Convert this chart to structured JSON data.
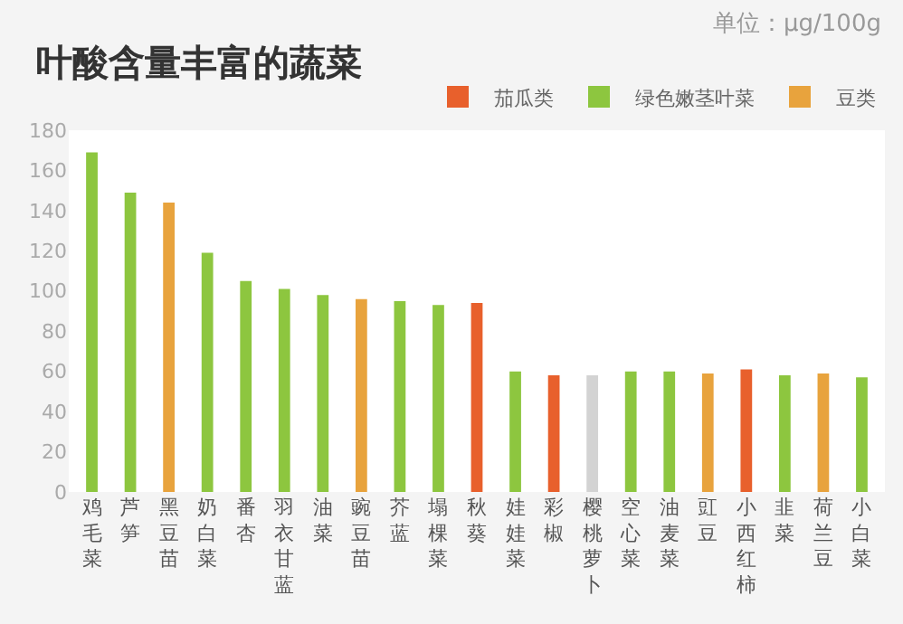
{
  "chart_data": {
    "type": "bar",
    "title": "叶酸含量丰富的蔬菜",
    "annotations": [
      "单位：μg/100g"
    ],
    "categories": [
      "鸡毛菜",
      "芦笋",
      "黑豆苗",
      "奶白菜",
      "番杏",
      "羽衣甘蓝",
      "油菜",
      "豌豆苗",
      "芥蓝",
      "塌棵菜",
      "秋葵",
      "娃娃菜",
      "彩椒",
      "樱桃萝卜",
      "空心菜",
      "油麦菜",
      "豇豆",
      "小西红柿",
      "韭菜",
      "荷兰豆",
      "小白菜"
    ],
    "series": [
      {
        "name": "茄瓜类",
        "color": "#e8602c",
        "values": [
          null,
          null,
          null,
          null,
          null,
          null,
          null,
          null,
          null,
          null,
          94,
          null,
          58,
          null,
          null,
          null,
          null,
          61,
          null,
          null,
          null
        ]
      },
      {
        "name": "绿色嫩茎叶菜",
        "color": "#8dc63f",
        "values": [
          169,
          149,
          null,
          119,
          105,
          101,
          98,
          null,
          95,
          93,
          null,
          60,
          null,
          null,
          60,
          60,
          null,
          null,
          58,
          null,
          57
        ]
      },
      {
        "name": "豆类",
        "color": "#e8a33d",
        "values": [
          null,
          null,
          144,
          null,
          null,
          null,
          null,
          96,
          null,
          null,
          null,
          null,
          null,
          null,
          null,
          null,
          59,
          null,
          null,
          59,
          null
        ]
      },
      {
        "color": "#d3d3d3",
        "values": [
          null,
          null,
          null,
          null,
          null,
          null,
          null,
          null,
          null,
          null,
          null,
          null,
          null,
          58,
          null,
          null,
          null,
          null,
          null,
          null,
          null
        ]
      }
    ],
    "ylim": [
      0,
      180
    ],
    "yticks": [
      0,
      20,
      40,
      60,
      80,
      100,
      120,
      140,
      160,
      180
    ],
    "legend": "top right"
  }
}
